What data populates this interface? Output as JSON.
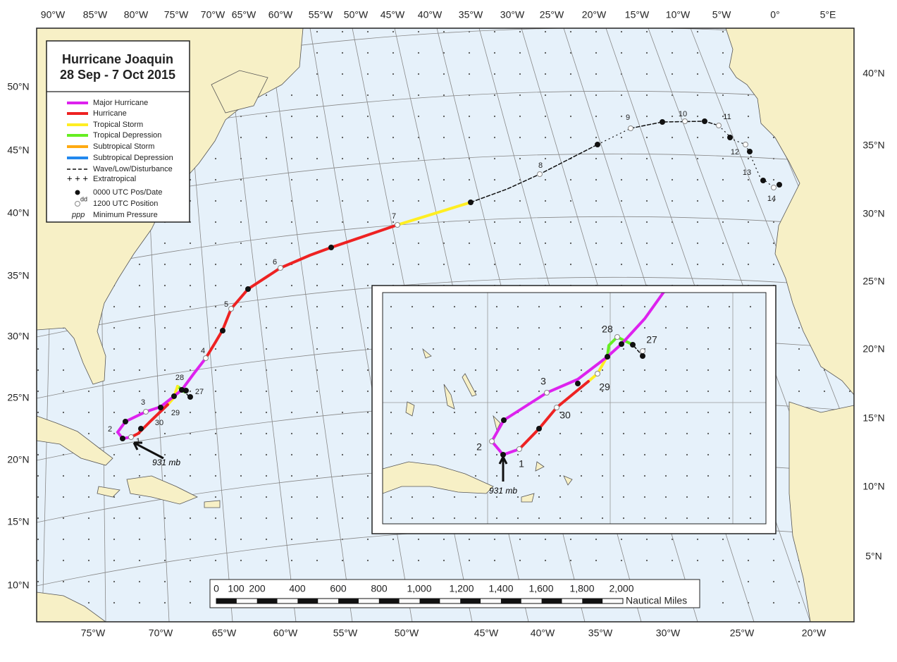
{
  "title": [
    "Hurricane Joaquin",
    "28 Sep - 7 Oct 2015"
  ],
  "legend": [
    "Major Hurricane",
    "Hurricane",
    "Tropical Storm",
    "Tropical Depression",
    "Subtropical Storm",
    "Subtropical Depression",
    "Wave/Low/Disturbance",
    "Extratropical",
    "0000 UTC Pos/Date",
    "1200 UTC Position",
    "Minimum Pressure"
  ],
  "legend_symbols": [
    "dd",
    "ppp"
  ],
  "top_labels": [
    "90°W",
    "85°W",
    "80°W",
    "75°W",
    "70°W",
    "65°W",
    "60°W",
    "55°W",
    "50°W",
    "45°W",
    "40°W",
    "35°W",
    "30°W",
    "25°W",
    "20°W",
    "15°W",
    "10°W",
    "5°W",
    "0°",
    "5°E"
  ],
  "bottom_labels": [
    "75°W",
    "70°W",
    "65°W",
    "60°W",
    "55°W",
    "50°W",
    "45°W",
    "40°W",
    "35°W",
    "30°W",
    "25°W",
    "20°W"
  ],
  "left_labels": [
    "50°N",
    "45°N",
    "40°N",
    "35°N",
    "30°N",
    "25°N",
    "20°N",
    "15°N",
    "10°N"
  ],
  "right_labels": [
    "40°N",
    "35°N",
    "30°N",
    "25°N",
    "20°N",
    "15°N",
    "10°N",
    "5°N"
  ],
  "track_labels": [
    "1",
    "2",
    "3",
    "4",
    "5",
    "6",
    "7",
    "8",
    "9",
    "10",
    "11",
    "12",
    "13",
    "14",
    "27",
    "28",
    "29",
    "30"
  ],
  "inset_labels": [
    "28",
    "27",
    "3",
    "29",
    "30",
    "2",
    "1"
  ],
  "pressure": "931 mb",
  "scale_labels": [
    "0",
    "100",
    "200",
    "400",
    "600",
    "800",
    "1,000",
    "1,200",
    "1,400",
    "1,600",
    "1,800",
    "2,000"
  ],
  "scale_unit": "Nautical Miles"
}
